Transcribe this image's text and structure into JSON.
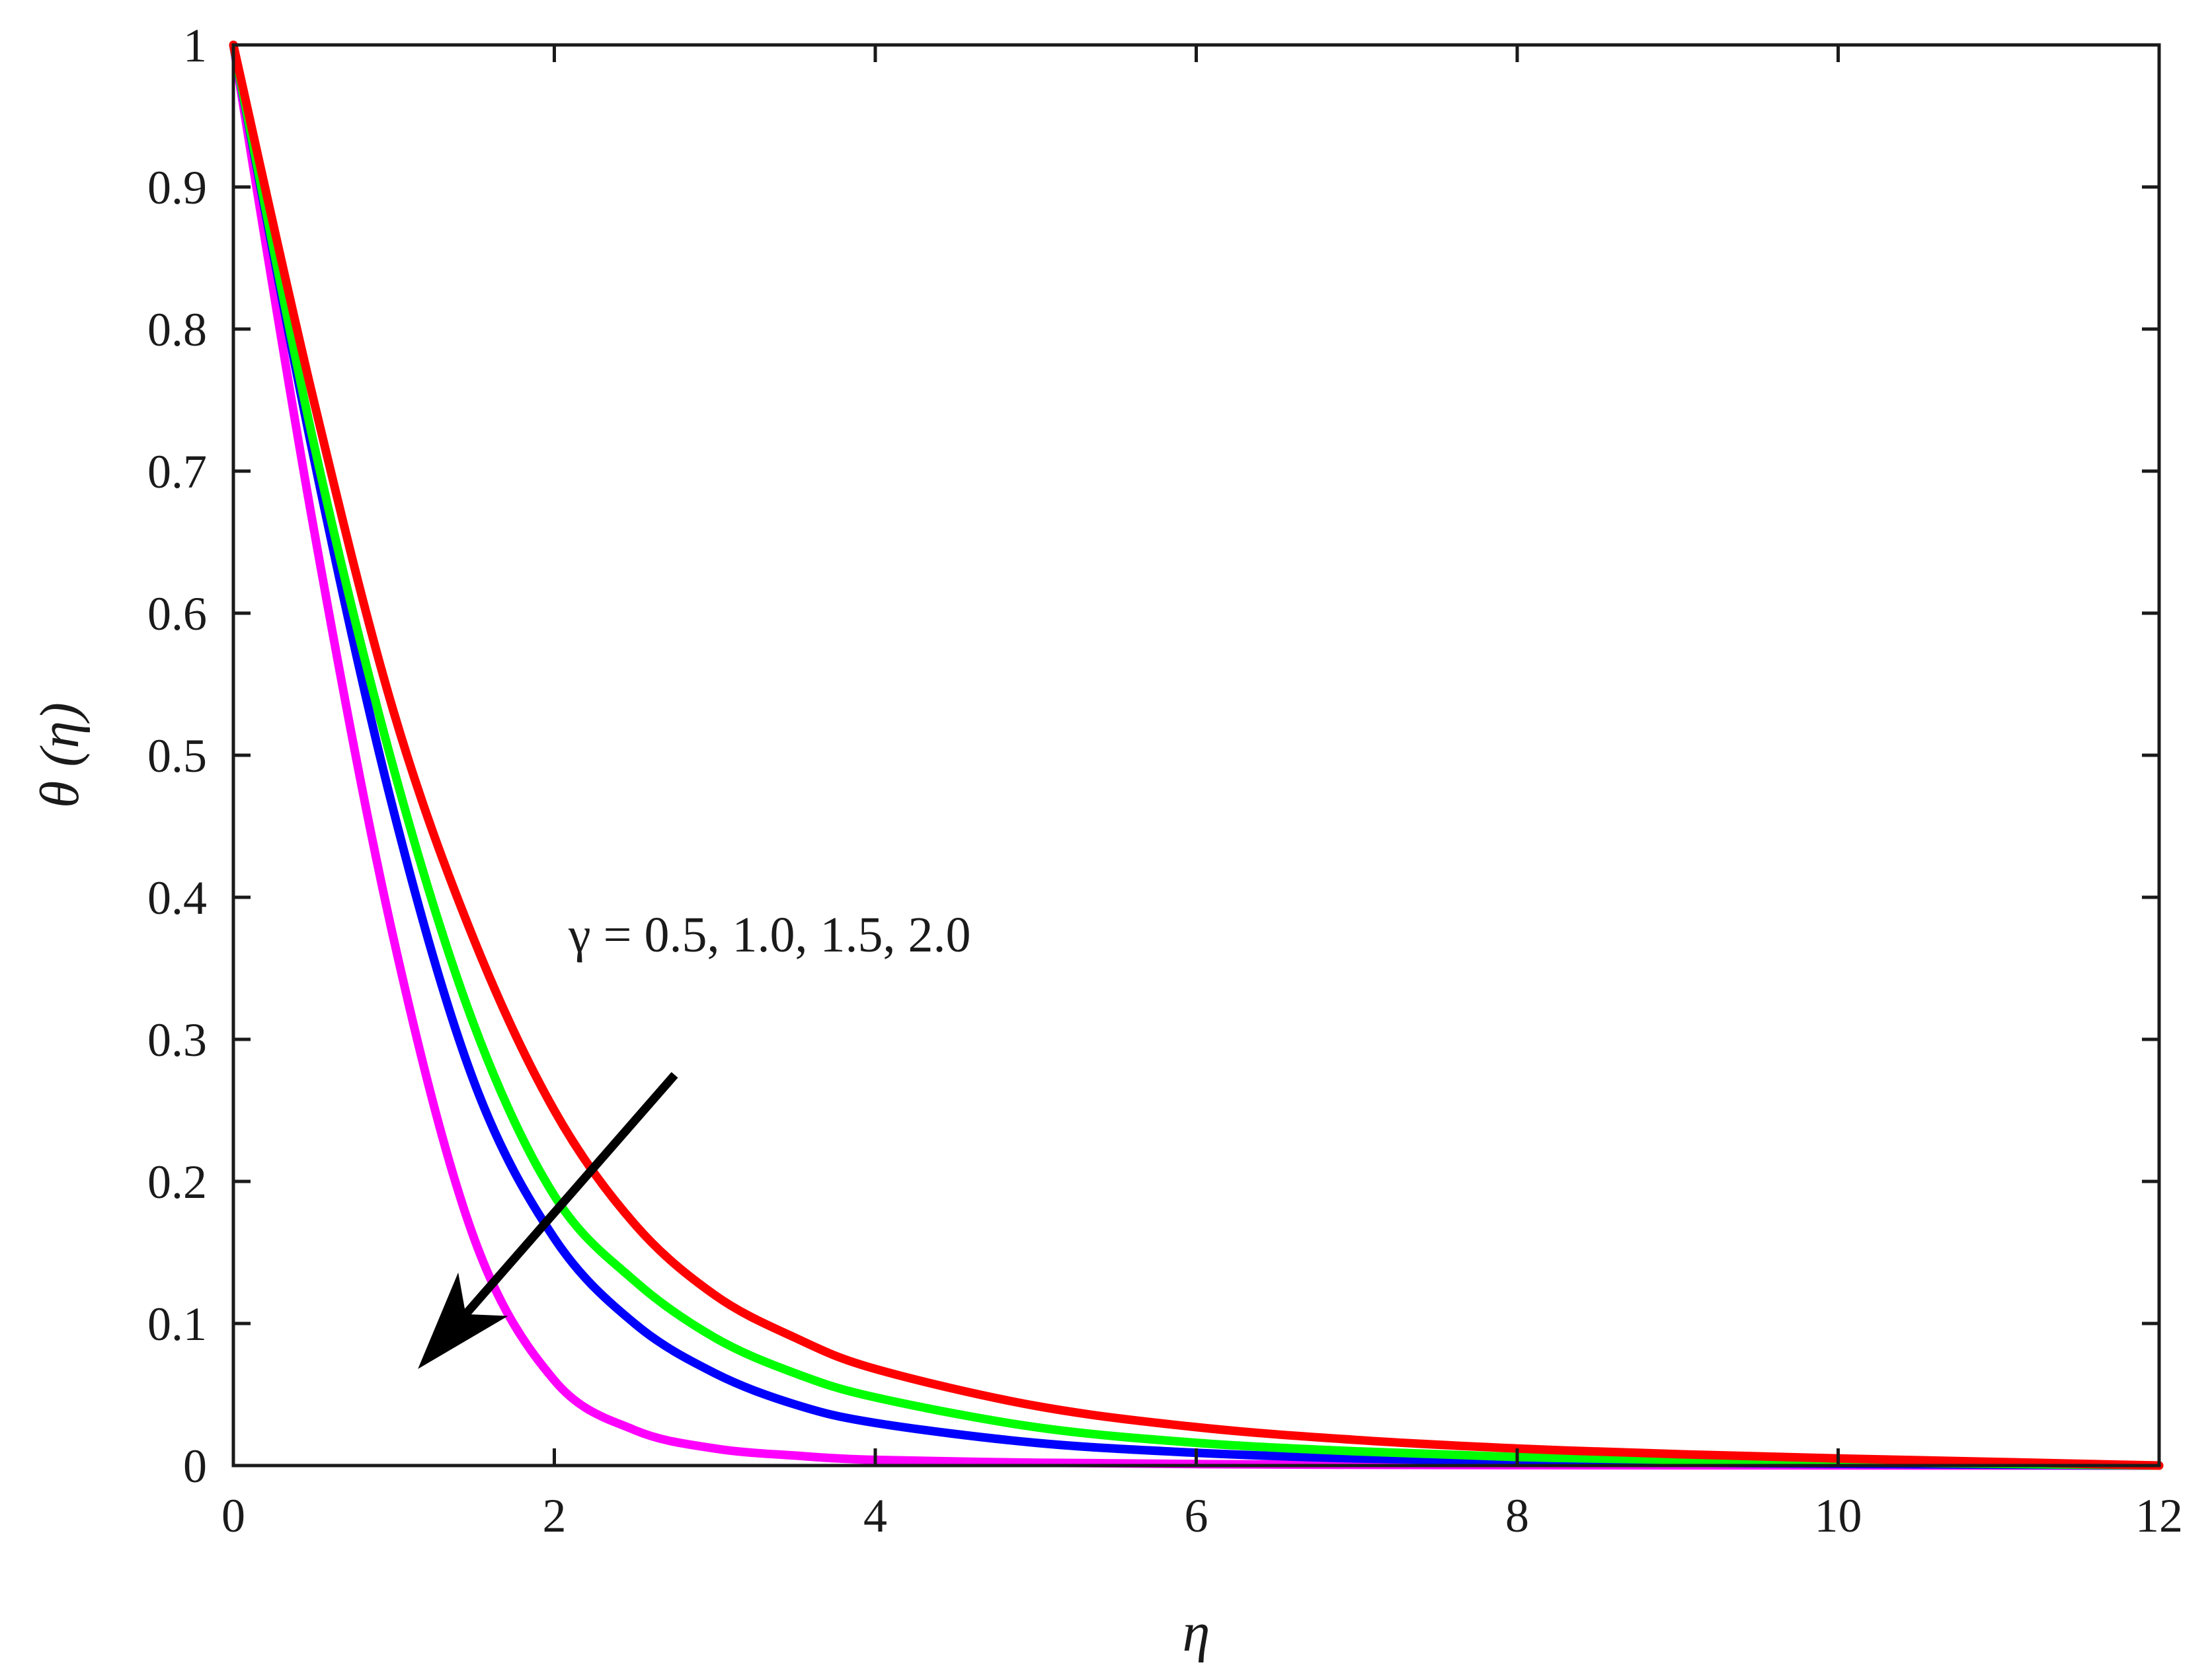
{
  "chart_data": {
    "type": "line",
    "title": "",
    "xlabel": "η",
    "ylabel": "θ (η)",
    "xlim": [
      0,
      12
    ],
    "ylim": [
      0,
      1
    ],
    "xticks": [
      0,
      2,
      4,
      6,
      8,
      10,
      12
    ],
    "xtick_labels": [
      "0",
      "2",
      "4",
      "6",
      "8",
      "10",
      "12"
    ],
    "yticks": [
      0,
      0.1,
      0.2,
      0.3,
      0.4,
      0.5,
      0.6,
      0.7,
      0.8,
      0.9,
      1
    ],
    "ytick_labels": [
      "0",
      "0.1",
      "0.2",
      "0.3",
      "0.4",
      "0.5",
      "0.6",
      "0.7",
      "0.8",
      "0.9",
      "1"
    ],
    "grid": false,
    "annotation": {
      "text": "γ = 0.5, 1.0, 1.5, 2.0",
      "arrow_from": [
        2.75,
        0.275
      ],
      "arrow_to": [
        1.15,
        0.068
      ]
    },
    "x": [
      0,
      0.5,
      1,
      1.5,
      2,
      2.5,
      3,
      3.5,
      4,
      5,
      6,
      7,
      8,
      9,
      10,
      11,
      12
    ],
    "series": [
      {
        "color": "#ff00ff",
        "values": [
          1,
          0.66,
          0.37,
          0.16,
          0.06,
          0.025,
          0.012,
          0.007,
          0.004,
          0.002,
          0.001,
          0.0005,
          0.0003,
          0.0002,
          0.0001,
          5e-05,
          0
        ]
      },
      {
        "color": "#0000ff",
        "values": [
          1,
          0.71,
          0.46,
          0.27,
          0.16,
          0.1,
          0.065,
          0.043,
          0.03,
          0.016,
          0.009,
          0.005,
          0.003,
          0.002,
          0.0012,
          0.0006,
          0
        ]
      },
      {
        "color": "#00ff00",
        "values": [
          1,
          0.72,
          0.49,
          0.31,
          0.19,
          0.13,
          0.09,
          0.065,
          0.048,
          0.027,
          0.016,
          0.01,
          0.006,
          0.004,
          0.0025,
          0.0012,
          0
        ]
      },
      {
        "color": "#ff0000",
        "values": [
          1,
          0.75,
          0.53,
          0.37,
          0.25,
          0.17,
          0.12,
          0.09,
          0.068,
          0.042,
          0.027,
          0.018,
          0.012,
          0.008,
          0.005,
          0.0025,
          0
        ]
      }
    ]
  }
}
